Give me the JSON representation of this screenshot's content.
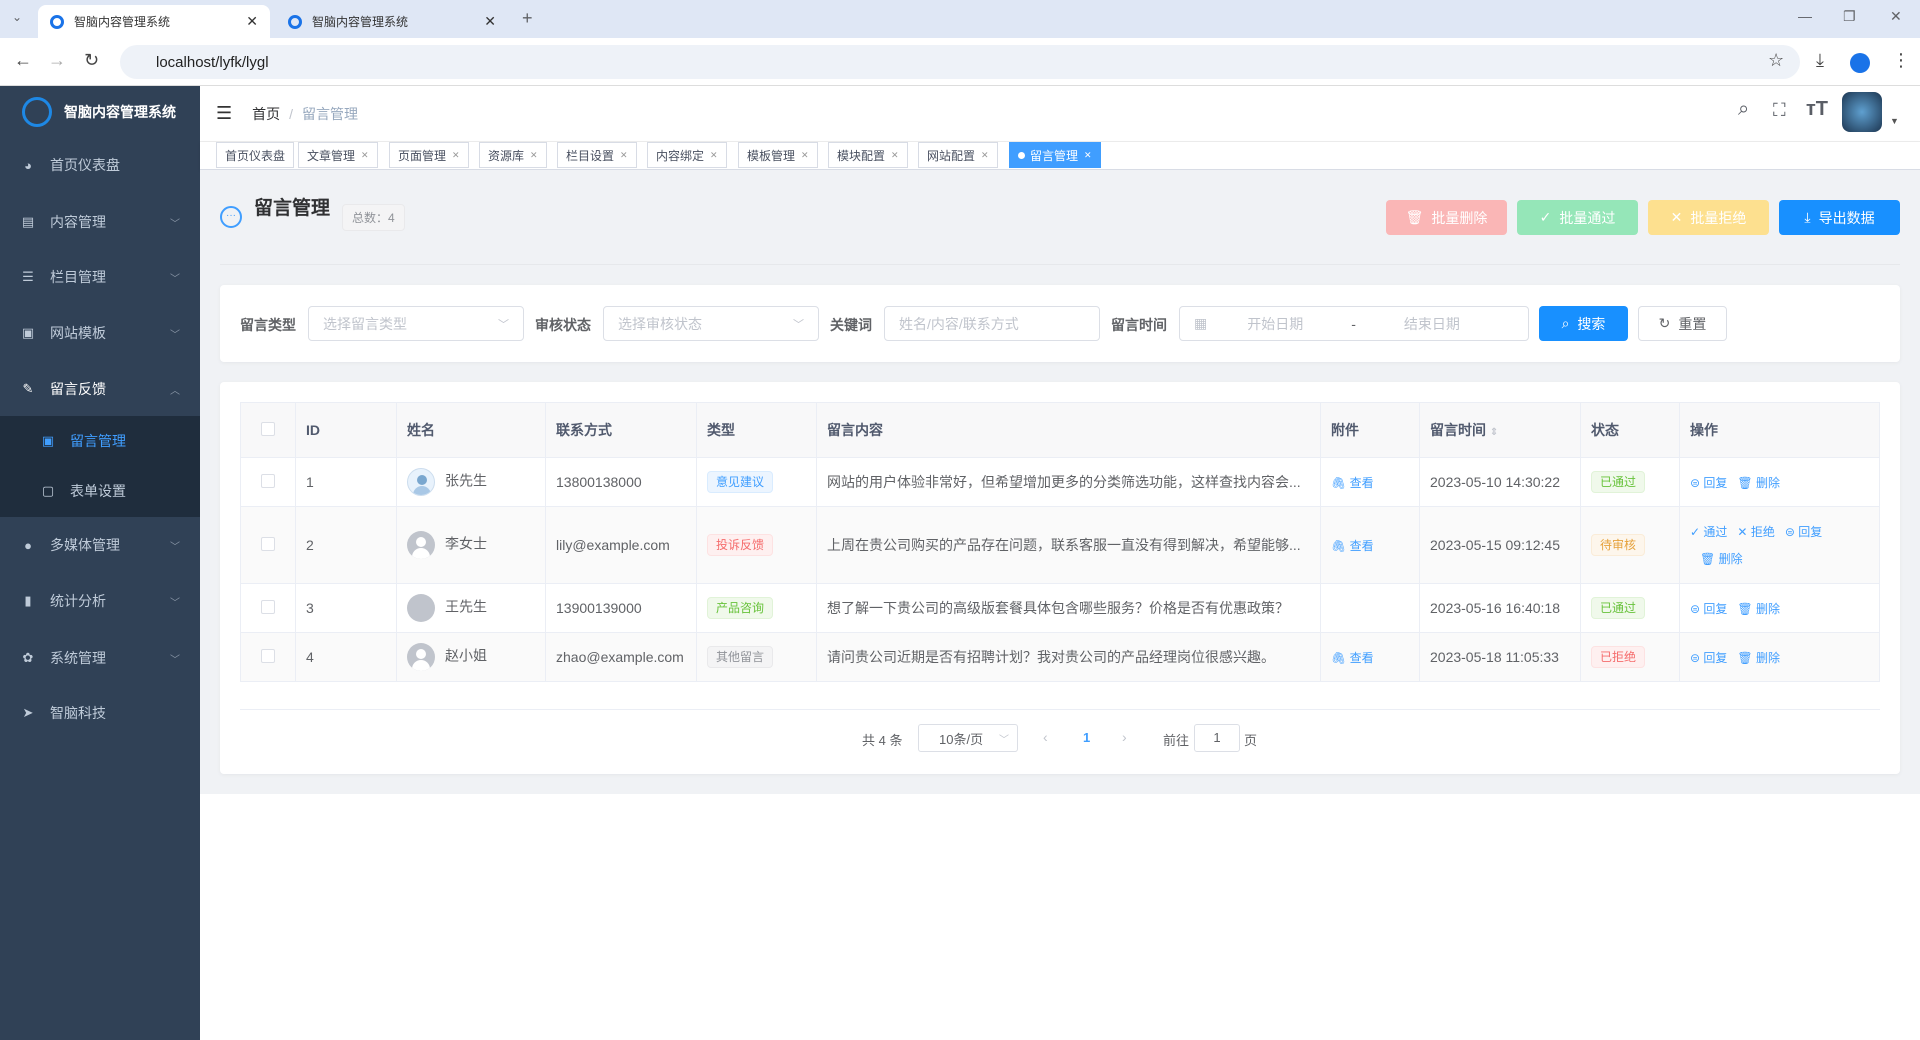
{
  "browser": {
    "tabs": [
      {
        "title": "智脑内容管理系统"
      },
      {
        "title": "智脑内容管理系统"
      }
    ],
    "url": "localhost/lyfk/lygl"
  },
  "app": {
    "name": "智脑内容管理系统",
    "accent": "#409eff"
  },
  "sidebar": {
    "items": [
      {
        "label": "首页仪表盘",
        "icon": "dashboard-icon"
      },
      {
        "label": "内容管理",
        "icon": "document-icon"
      },
      {
        "label": "栏目管理",
        "icon": "list-icon"
      },
      {
        "label": "网站模板",
        "icon": "template-icon"
      },
      {
        "label": "留言反馈",
        "icon": "edit-icon",
        "expanded": true,
        "children": [
          {
            "label": "留言管理",
            "active": true
          },
          {
            "label": "表单设置"
          }
        ]
      },
      {
        "label": "多媒体管理",
        "icon": "github-icon"
      },
      {
        "label": "统计分析",
        "icon": "bar-chart-icon"
      },
      {
        "label": "系统管理",
        "icon": "gear-icon"
      },
      {
        "label": "智脑科技",
        "icon": "send-icon"
      }
    ]
  },
  "header": {
    "breadcrumb": [
      "首页",
      "留言管理"
    ]
  },
  "tags": [
    "首页仪表盘",
    "文章管理",
    "页面管理",
    "资源库",
    "栏目设置",
    "内容绑定",
    "模板管理",
    "模块配置",
    "网站配置",
    "留言管理"
  ],
  "page": {
    "title": "留言管理",
    "total": "总数：4",
    "buttons": {
      "batch_delete": "批量删除",
      "batch_approve": "批量通过",
      "batch_reject": "批量拒绝",
      "export": "导出数据"
    }
  },
  "filters": {
    "type_label": "留言类型",
    "type_placeholder": "选择留言类型",
    "status_label": "审核状态",
    "status_placeholder": "选择审核状态",
    "keyword_label": "关键词",
    "keyword_placeholder": "姓名/内容/联系方式",
    "time_label": "留言时间",
    "start_placeholder": "开始日期",
    "sep": "-",
    "end_placeholder": "结束日期",
    "search": "搜索",
    "reset": "重置"
  },
  "table": {
    "columns": [
      "ID",
      "姓名",
      "联系方式",
      "类型",
      "留言内容",
      "附件",
      "留言时间",
      "状态",
      "操作"
    ],
    "rows": [
      {
        "id": "1",
        "name": "张先生",
        "contact": "13800138000",
        "type": "意见建议",
        "type_color": "blue",
        "content": "网站的用户体验非常好，但希望增加更多的分类筛选功能，这样查找内容会...",
        "attachment": "查看",
        "time": "2023-05-10 14:30:22",
        "status": "已通过",
        "status_color": "green",
        "actions": [
          "回复",
          "删除"
        ]
      },
      {
        "id": "2",
        "name": "李女士",
        "contact": "lily@example.com",
        "type": "投诉反馈",
        "type_color": "red",
        "content": "上周在贵公司购买的产品存在问题，联系客服一直没有得到解决，希望能够...",
        "attachment": "查看",
        "time": "2023-05-15 09:12:45",
        "status": "待审核",
        "status_color": "yellow",
        "actions": [
          "通过",
          "拒绝",
          "回复",
          "删除"
        ]
      },
      {
        "id": "3",
        "name": "王先生",
        "contact": "13900139000",
        "type": "产品咨询",
        "type_color": "green",
        "content": "想了解一下贵公司的高级版套餐具体包含哪些服务？价格是否有优惠政策？",
        "attachment": "",
        "time": "2023-05-16 16:40:18",
        "status": "已通过",
        "status_color": "green",
        "actions": [
          "回复",
          "删除"
        ]
      },
      {
        "id": "4",
        "name": "赵小姐",
        "contact": "zhao@example.com",
        "type": "其他留言",
        "type_color": "gray",
        "content": "请问贵公司近期是否有招聘计划？我对贵公司的产品经理岗位很感兴趣。",
        "attachment": "查看",
        "time": "2023-05-18 11:05:33",
        "status": "已拒绝",
        "status_color": "red",
        "actions": [
          "回复",
          "删除"
        ]
      }
    ]
  },
  "pagination": {
    "total": "共 4 条",
    "page_size": "10条/页",
    "current": "1",
    "goto_label": "前往",
    "goto_value": "1",
    "page_suffix": "页"
  }
}
